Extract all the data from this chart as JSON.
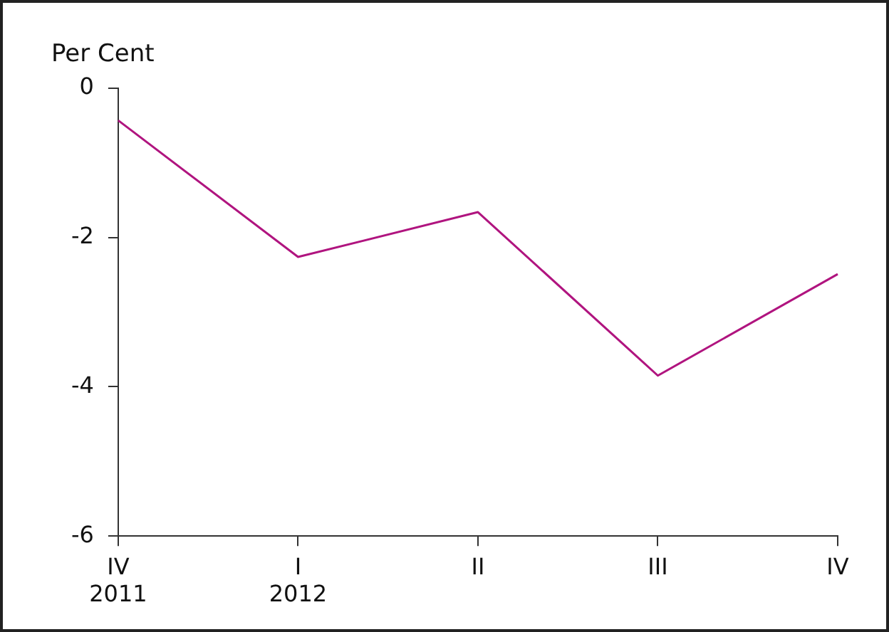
{
  "chart_data": {
    "type": "line",
    "ylabel": "Per Cent",
    "categories": [
      "IV\n2011",
      "I\n2012",
      "II",
      "III",
      "IV"
    ],
    "series": [
      {
        "color": "#b0147f",
        "values": [
          -0.43,
          -2.26,
          -1.66,
          -3.85,
          -2.49
        ]
      }
    ],
    "ylim": [
      -6,
      0
    ],
    "yticks": [
      0,
      -2,
      -4,
      -6
    ],
    "grid": false,
    "legend": false,
    "marker": "none",
    "line_style": "solid"
  }
}
